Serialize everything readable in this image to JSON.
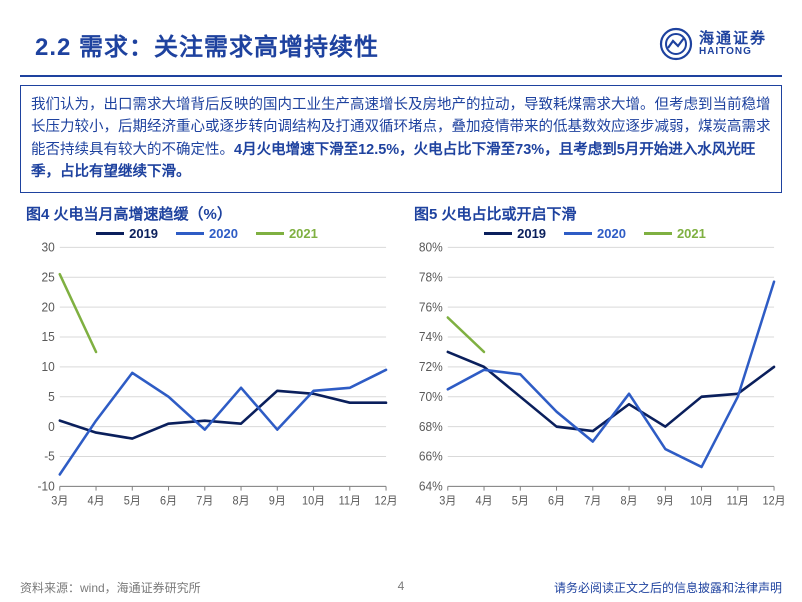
{
  "header": {
    "title": "2.2 需求：关注需求高增持续性",
    "logo_cn": "海通证券",
    "logo_en": "HAITONG"
  },
  "paragraph": {
    "run1": "我们认为，出口需求大增背后反映的国内工业生产高速增长及房地产的拉动，导致耗煤需求大增。但考虑到当前稳增长压力较小，后期经济重心或逐步转向调结构及打通双循环堵点，叠加疫情带来的低基数效应逐步减弱，煤炭高需求能否持续具有较大的不确定性。",
    "run2_bold": "4月火电增速下滑至12.5%，火电占比下滑至73%，且考虑到5月开始进入水风光旺季，占比有望继续下滑。"
  },
  "chart_left": {
    "title": "图4 火电当月高增速趋缓（%）",
    "type": "line",
    "x_labels": [
      "3月",
      "4月",
      "5月",
      "6月",
      "7月",
      "8月",
      "9月",
      "10月",
      "11月",
      "12月"
    ],
    "ylim": [
      -10,
      30
    ],
    "ytick_step": 5,
    "axis_color": "#808080",
    "grid_color": "#d9d9d9",
    "tick_font_size": 12,
    "tick_color": "#595959",
    "background_color": "#ffffff",
    "line_width": 2.5,
    "legend_pos": "top-center",
    "series": [
      {
        "name": "2019",
        "color": "#0a1f5c",
        "values": [
          1,
          -1,
          -2,
          0.5,
          1,
          0.5,
          6,
          5.5,
          4,
          4
        ]
      },
      {
        "name": "2020",
        "color": "#2e5cc5",
        "values": [
          -8,
          1,
          9,
          5,
          -0.5,
          6.5,
          -0.5,
          6,
          6.5,
          9.5
        ]
      },
      {
        "name": "2021",
        "color": "#7fb041",
        "values": [
          25.5,
          12.5,
          null,
          null,
          null,
          null,
          null,
          null,
          null,
          null
        ]
      }
    ]
  },
  "chart_right": {
    "title": "图5 火电占比或开启下滑",
    "type": "line",
    "x_labels": [
      "3月",
      "4月",
      "5月",
      "6月",
      "7月",
      "8月",
      "9月",
      "10月",
      "11月",
      "12月"
    ],
    "ylim": [
      64,
      80
    ],
    "ytick_step": 2,
    "y_suffix": "%",
    "axis_color": "#808080",
    "grid_color": "#d9d9d9",
    "tick_font_size": 12,
    "tick_color": "#595959",
    "background_color": "#ffffff",
    "line_width": 2.5,
    "legend_pos": "top-center",
    "series": [
      {
        "name": "2019",
        "color": "#0a1f5c",
        "values": [
          73,
          72,
          70,
          68,
          67.7,
          69.5,
          68,
          70,
          70.2,
          72
        ]
      },
      {
        "name": "2020",
        "color": "#2e5cc5",
        "values": [
          70.5,
          71.8,
          71.5,
          69,
          67,
          70.2,
          66.5,
          65.3,
          70,
          77.7
        ]
      },
      {
        "name": "2021",
        "color": "#7fb041",
        "values": [
          75.3,
          73,
          null,
          null,
          null,
          null,
          null,
          null,
          null,
          null
        ]
      }
    ]
  },
  "footer": {
    "source": "资料来源：wind，海通证券研究所",
    "page": "4",
    "disclaimer": "请务必阅读正文之后的信息披露和法律声明"
  },
  "colors": {
    "brand": "#1e429f"
  }
}
